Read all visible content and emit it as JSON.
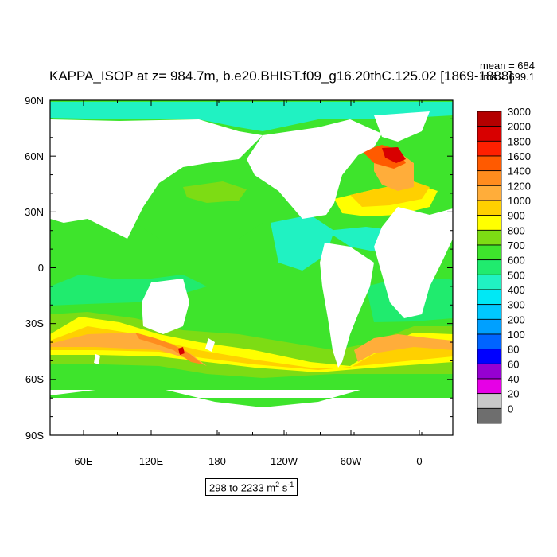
{
  "title": "KAPPA_ISOP at z= 984.7m, b.e20.BHIST.f09_g16.20thC.125.02 [1869-1888]",
  "stats": {
    "mean": "mean = 684",
    "rms": "rms = 699.1"
  },
  "range": {
    "text": "298 to 2233 m",
    "unit_exp1": "2",
    "unit_mid": " s",
    "unit_exp2": "-1"
  },
  "axes": {
    "lat_labels": [
      "90N",
      "60N",
      "30N",
      "0",
      "30S",
      "60S",
      "90S"
    ],
    "lon_labels": [
      "60E",
      "120E",
      "180",
      "120W",
      "60W",
      "0"
    ]
  },
  "colorbar": {
    "levels": [
      "3000",
      "2000",
      "1800",
      "1600",
      "1400",
      "1200",
      "1000",
      "900",
      "800",
      "700",
      "600",
      "500",
      "400",
      "300",
      "200",
      "100",
      "80",
      "60",
      "40",
      "20",
      "0"
    ],
    "colors": [
      "#b40000",
      "#d80000",
      "#ff2000",
      "#ff5a00",
      "#ff8c1e",
      "#ffad3a",
      "#ffd000",
      "#ffff00",
      "#7ddc14",
      "#3ee42c",
      "#20eb6e",
      "#20f2c2",
      "#00e8f5",
      "#00c8ff",
      "#00a0ff",
      "#0064ff",
      "#0000ff",
      "#9600d2",
      "#e600e6",
      "#c8c8c8",
      "#6e6e6e"
    ]
  },
  "colors": {
    "land": "#ffffff",
    "ocean_base": "#3ee42c",
    "ocean_600": "#20eb6e",
    "ocean_500": "#20f2c2",
    "ocean_800": "#7ddc14",
    "band_900": "#ffff00",
    "band_1000": "#ffd000",
    "band_1200": "#ffad3a",
    "band_1400": "#ff8c1e",
    "hot": "#d80000"
  }
}
